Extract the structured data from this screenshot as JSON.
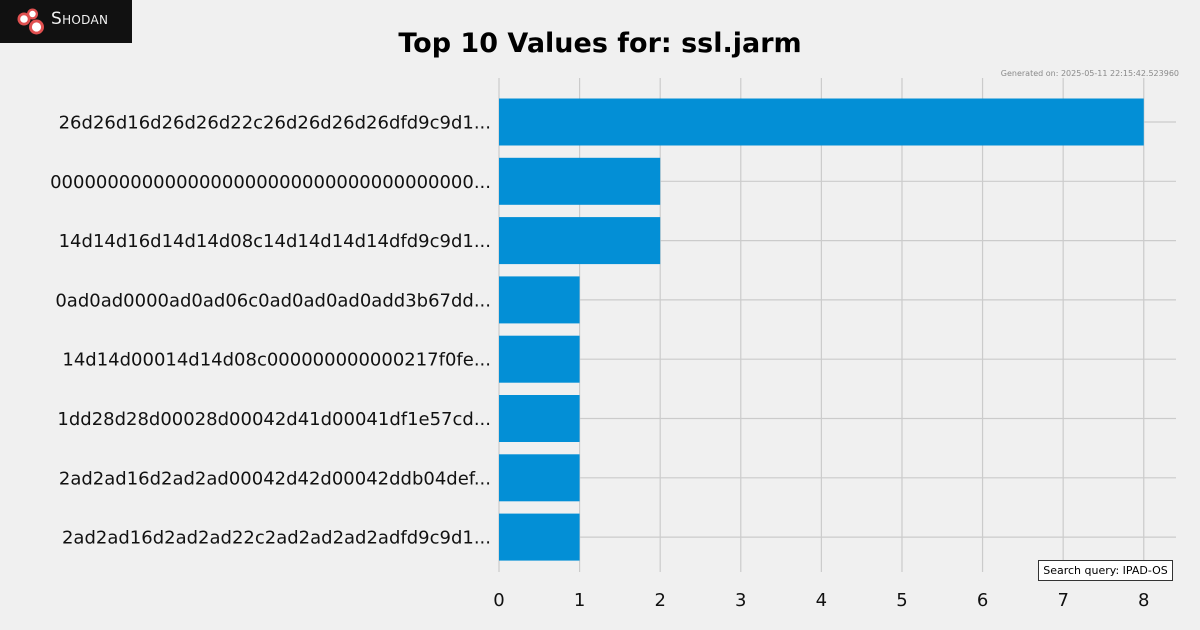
{
  "logo": {
    "text": "Shodan"
  },
  "generated": "Generated on: 2025-05-11 22:15:42.523960",
  "query": "Search query: IPAD-OS",
  "colors": {
    "bar": "#038fd6",
    "grid": "#cbcbcb",
    "background": "#f0f0f0"
  },
  "chart_data": {
    "type": "bar",
    "orientation": "horizontal",
    "title": "Top 10 Values for: ssl.jarm",
    "categories": [
      "26d26d16d26d26d22c26d26d26d26dfd9c9d1...",
      "0000000000000000000000000000000000000...",
      "14d14d16d14d14d08c14d14d14d14dfd9c9d1...",
      "0ad0ad0000ad0ad06c0ad0ad0ad0add3b67dd...",
      "14d14d00014d14d08c000000000000217f0fe...",
      "1dd28d28d00028d00042d41d00041df1e57cd...",
      "2ad2ad16d2ad2ad00042d42d00042ddb04def...",
      "2ad2ad16d2ad2ad22c2ad2ad2ad2adfd9c9d1..."
    ],
    "values": [
      8,
      2,
      2,
      1,
      1,
      1,
      1,
      1
    ],
    "xticks": [
      "0",
      "1",
      "2",
      "3",
      "4",
      "5",
      "6",
      "7",
      "8"
    ],
    "xlim": [
      0,
      8.4
    ],
    "grid": true
  }
}
